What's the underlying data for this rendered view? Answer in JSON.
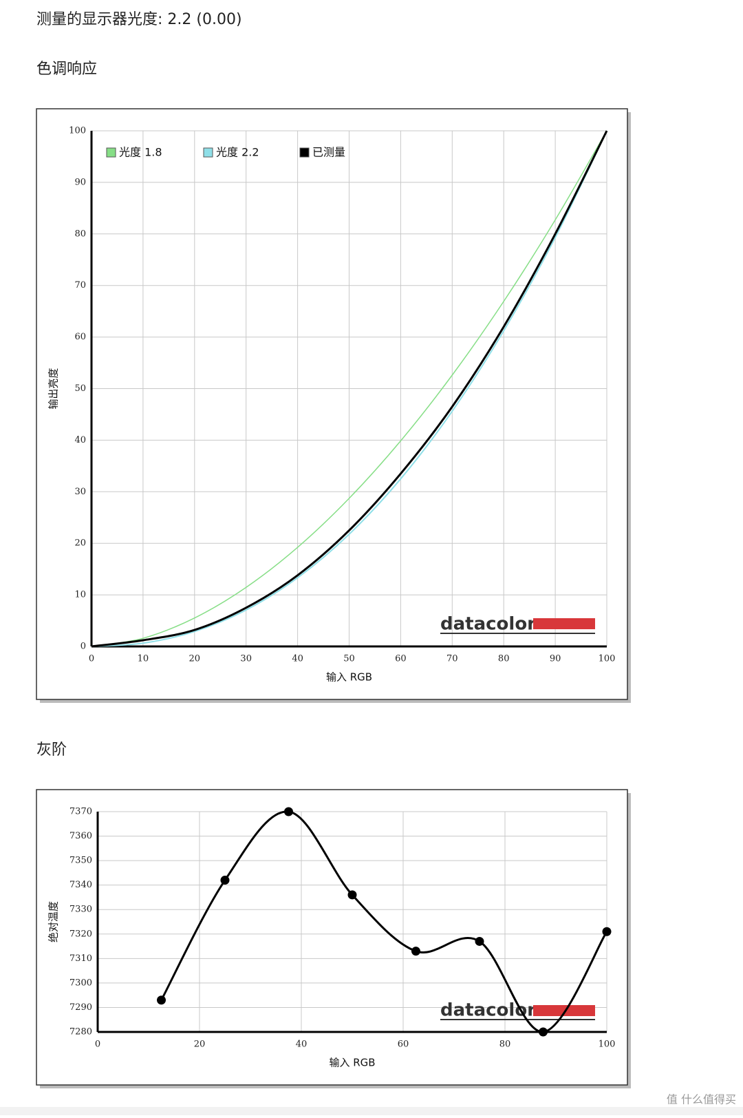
{
  "header": "测量的显示器光度: 2.2 (0.00)",
  "sections": [
    {
      "title": "色调响应"
    },
    {
      "title": "灰阶"
    }
  ],
  "watermark": "值 什么值得买",
  "chart_data": [
    {
      "type": "line",
      "logo": "datacolor",
      "x_label": "输入 RGB",
      "y_label": "输出亮度",
      "x": [
        0,
        10,
        20,
        30,
        40,
        50,
        60,
        70,
        80,
        90,
        100
      ],
      "series": [
        {
          "name": "光度 1.8",
          "color": "#86de86",
          "width": 1.5,
          "values": [
            0,
            1.58,
            5.52,
            11.45,
            19.22,
            28.72,
            39.87,
            52.62,
            66.92,
            82.73,
            100
          ]
        },
        {
          "name": "光度 2.2",
          "color": "#8fdfe8",
          "width": 2,
          "values": [
            0,
            0.63,
            2.9,
            7.07,
            13.32,
            21.76,
            32.5,
            45.62,
            61.21,
            79.31,
            100
          ]
        },
        {
          "name": "已测量",
          "color": "#000000",
          "width": 3,
          "values": [
            0,
            1.2,
            3.2,
            7.5,
            13.8,
            22.5,
            33.5,
            46.5,
            62,
            80,
            100
          ]
        }
      ],
      "xlim": [
        0,
        100
      ],
      "xticks": [
        0,
        10,
        20,
        30,
        40,
        50,
        60,
        70,
        80,
        90,
        100
      ],
      "ylim": [
        0,
        100
      ],
      "yticks": [
        0,
        10,
        20,
        30,
        40,
        50,
        60,
        70,
        80,
        90,
        100
      ],
      "grid": true,
      "legend": "top"
    },
    {
      "type": "line",
      "logo": "datacolor",
      "markers": true,
      "x_label": "输入 RGB",
      "y_label": "绝对温度",
      "x": [
        12.5,
        25,
        37.5,
        50,
        62.5,
        75,
        87.5,
        100
      ],
      "series": [
        {
          "color": "#000000",
          "width": 3,
          "values": [
            7293,
            7342,
            7370,
            7336,
            7313,
            7317,
            7280,
            7321
          ]
        }
      ],
      "xlim": [
        0,
        100
      ],
      "xticks": [
        0,
        20,
        40,
        60,
        80,
        100
      ],
      "ylim": [
        7280,
        7370
      ],
      "yticks": [
        7280,
        7290,
        7300,
        7310,
        7320,
        7330,
        7340,
        7350,
        7360,
        7370
      ],
      "grid": true
    }
  ]
}
